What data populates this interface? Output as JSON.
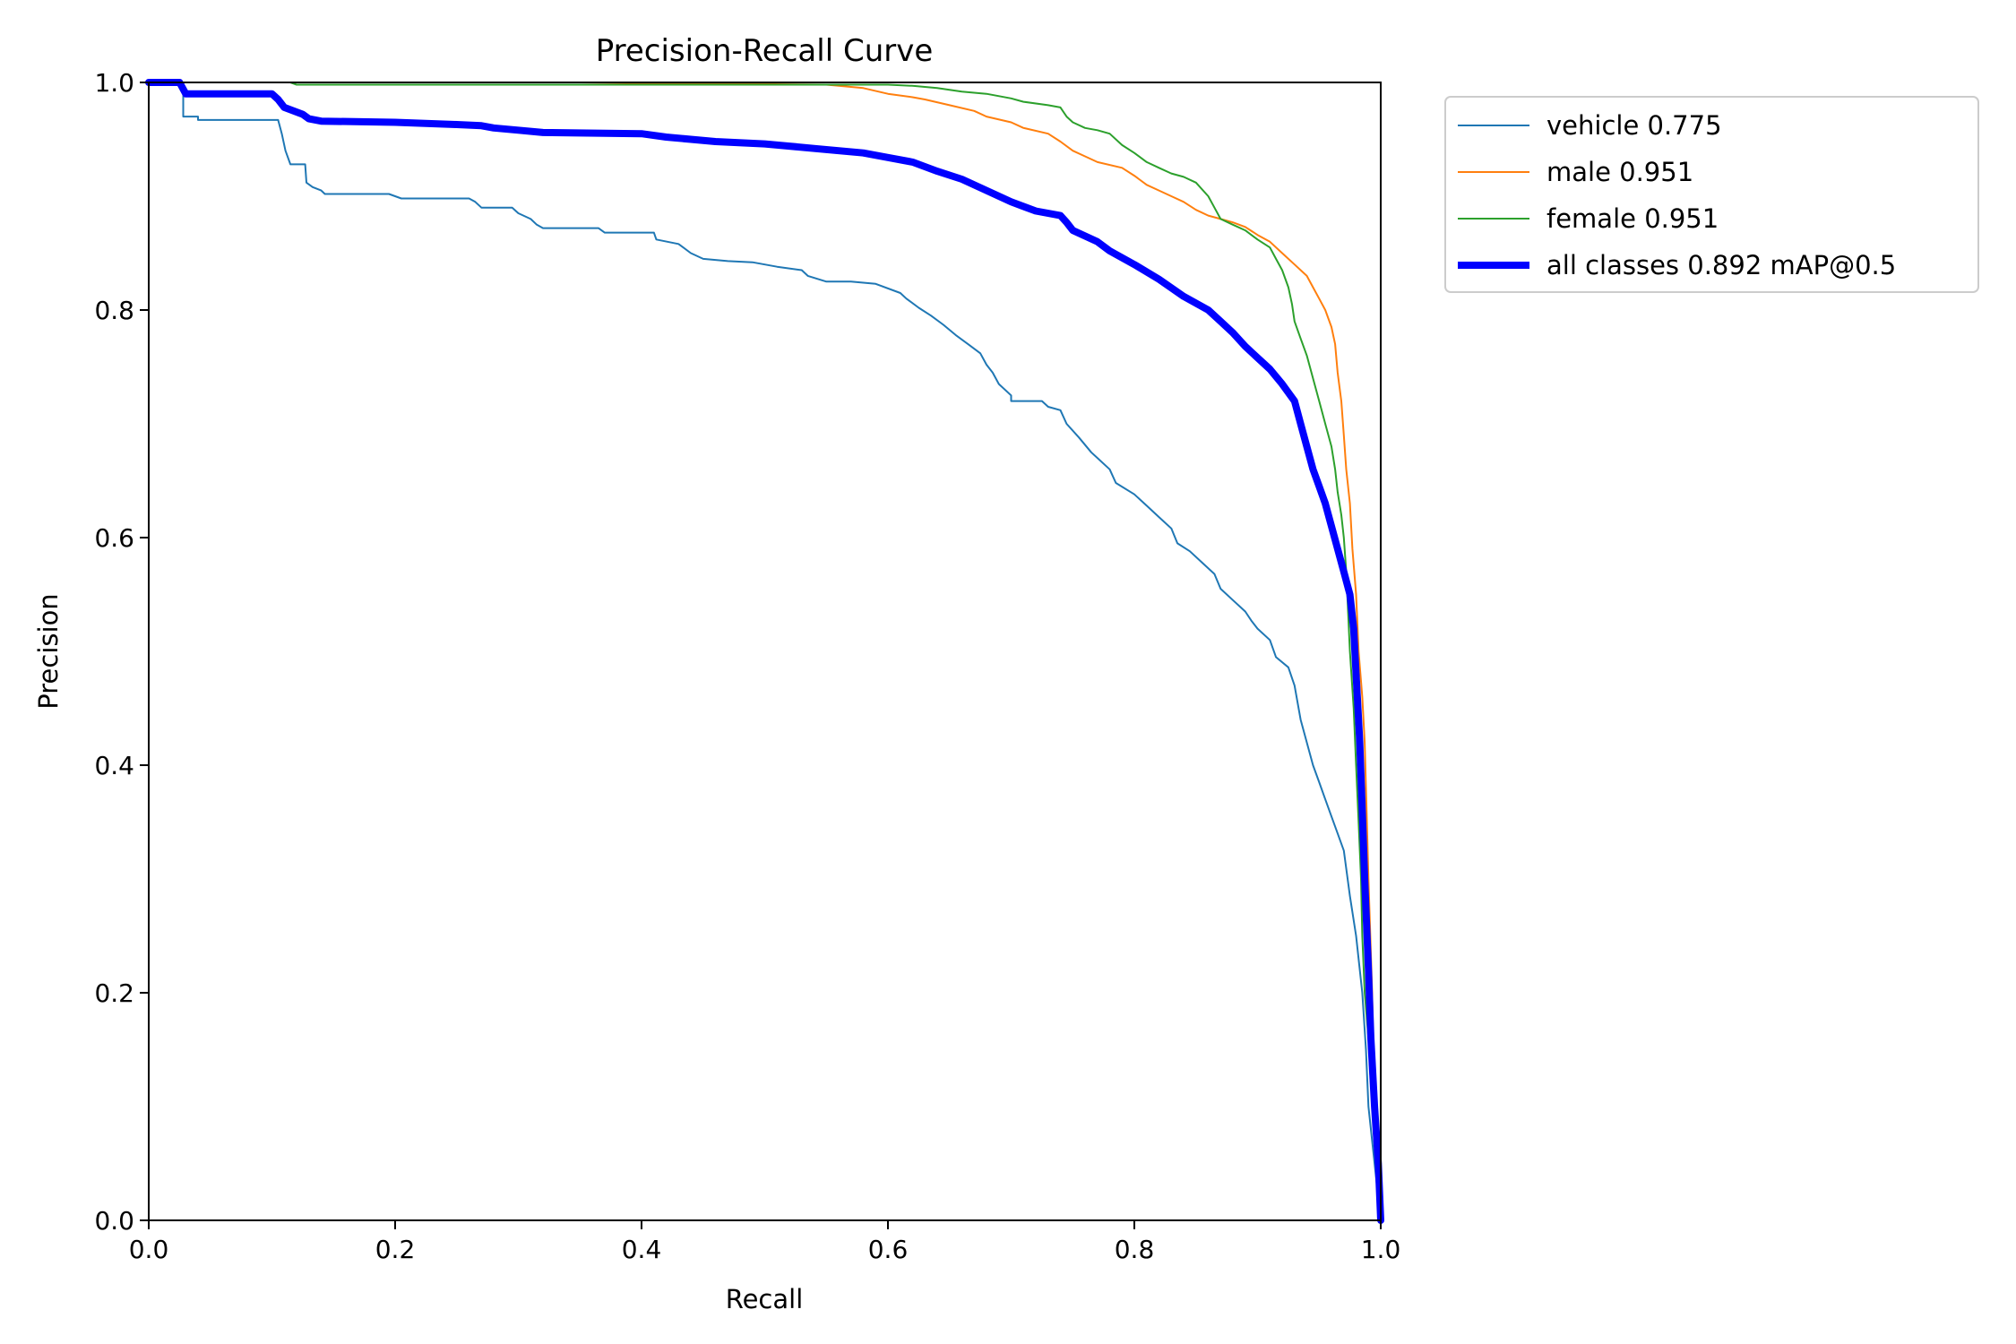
{
  "chart_data": {
    "type": "line",
    "title": "Precision-Recall Curve",
    "xlabel": "Recall",
    "ylabel": "Precision",
    "xlim": [
      0,
      1
    ],
    "ylim": [
      0,
      1
    ],
    "xticks": [
      "0.0",
      "0.2",
      "0.4",
      "0.6",
      "0.8",
      "1.0"
    ],
    "yticks": [
      "0.0",
      "0.2",
      "0.4",
      "0.6",
      "0.8",
      "1.0"
    ],
    "grid": false,
    "legend_position": "outside-top-right",
    "series": [
      {
        "name": "vehicle 0.775",
        "color": "#1f77b4",
        "emphasis": "thin",
        "points": [
          [
            0,
            1.0
          ],
          [
            0.028,
            1.0
          ],
          [
            0.028,
            0.97
          ],
          [
            0.04,
            0.97
          ],
          [
            0.04,
            0.967
          ],
          [
            0.105,
            0.967
          ],
          [
            0.108,
            0.955
          ],
          [
            0.111,
            0.94
          ],
          [
            0.115,
            0.928
          ],
          [
            0.127,
            0.928
          ],
          [
            0.128,
            0.912
          ],
          [
            0.133,
            0.908
          ],
          [
            0.14,
            0.905
          ],
          [
            0.143,
            0.902
          ],
          [
            0.195,
            0.902
          ],
          [
            0.2,
            0.9
          ],
          [
            0.205,
            0.898
          ],
          [
            0.26,
            0.898
          ],
          [
            0.265,
            0.895
          ],
          [
            0.27,
            0.89
          ],
          [
            0.295,
            0.89
          ],
          [
            0.3,
            0.885
          ],
          [
            0.31,
            0.88
          ],
          [
            0.315,
            0.875
          ],
          [
            0.32,
            0.872
          ],
          [
            0.365,
            0.872
          ],
          [
            0.37,
            0.868
          ],
          [
            0.41,
            0.868
          ],
          [
            0.412,
            0.862
          ],
          [
            0.43,
            0.858
          ],
          [
            0.44,
            0.85
          ],
          [
            0.45,
            0.845
          ],
          [
            0.47,
            0.843
          ],
          [
            0.49,
            0.842
          ],
          [
            0.51,
            0.838
          ],
          [
            0.53,
            0.835
          ],
          [
            0.535,
            0.83
          ],
          [
            0.55,
            0.825
          ],
          [
            0.57,
            0.825
          ],
          [
            0.59,
            0.823
          ],
          [
            0.61,
            0.815
          ],
          [
            0.615,
            0.81
          ],
          [
            0.625,
            0.802
          ],
          [
            0.635,
            0.795
          ],
          [
            0.645,
            0.787
          ],
          [
            0.655,
            0.778
          ],
          [
            0.665,
            0.77
          ],
          [
            0.675,
            0.762
          ],
          [
            0.68,
            0.752
          ],
          [
            0.685,
            0.745
          ],
          [
            0.69,
            0.735
          ],
          [
            0.7,
            0.725
          ],
          [
            0.7,
            0.72
          ],
          [
            0.725,
            0.72
          ],
          [
            0.73,
            0.715
          ],
          [
            0.74,
            0.712
          ],
          [
            0.745,
            0.7
          ],
          [
            0.755,
            0.688
          ],
          [
            0.765,
            0.675
          ],
          [
            0.78,
            0.66
          ],
          [
            0.785,
            0.648
          ],
          [
            0.8,
            0.638
          ],
          [
            0.81,
            0.628
          ],
          [
            0.82,
            0.618
          ],
          [
            0.83,
            0.608
          ],
          [
            0.835,
            0.595
          ],
          [
            0.845,
            0.588
          ],
          [
            0.855,
            0.578
          ],
          [
            0.865,
            0.568
          ],
          [
            0.87,
            0.555
          ],
          [
            0.88,
            0.545
          ],
          [
            0.89,
            0.535
          ],
          [
            0.895,
            0.527
          ],
          [
            0.9,
            0.52
          ],
          [
            0.91,
            0.51
          ],
          [
            0.915,
            0.495
          ],
          [
            0.925,
            0.486
          ],
          [
            0.93,
            0.47
          ],
          [
            0.935,
            0.44
          ],
          [
            0.94,
            0.42
          ],
          [
            0.945,
            0.4
          ],
          [
            0.95,
            0.385
          ],
          [
            0.955,
            0.37
          ],
          [
            0.96,
            0.355
          ],
          [
            0.965,
            0.34
          ],
          [
            0.97,
            0.325
          ],
          [
            0.975,
            0.285
          ],
          [
            0.98,
            0.25
          ],
          [
            0.985,
            0.2
          ],
          [
            0.988,
            0.15
          ],
          [
            0.99,
            0.1
          ],
          [
            0.995,
            0.05
          ],
          [
            1.0,
            0.0
          ]
        ]
      },
      {
        "name": "male 0.951",
        "color": "#ff7f0e",
        "emphasis": "thin",
        "points": [
          [
            0,
            1.0
          ],
          [
            0.12,
            1.0
          ],
          [
            0.35,
            1.0
          ],
          [
            0.45,
            0.999
          ],
          [
            0.55,
            0.998
          ],
          [
            0.58,
            0.995
          ],
          [
            0.6,
            0.99
          ],
          [
            0.62,
            0.987
          ],
          [
            0.63,
            0.985
          ],
          [
            0.65,
            0.98
          ],
          [
            0.67,
            0.975
          ],
          [
            0.68,
            0.97
          ],
          [
            0.7,
            0.965
          ],
          [
            0.71,
            0.96
          ],
          [
            0.73,
            0.955
          ],
          [
            0.74,
            0.948
          ],
          [
            0.75,
            0.94
          ],
          [
            0.76,
            0.935
          ],
          [
            0.77,
            0.93
          ],
          [
            0.79,
            0.925
          ],
          [
            0.8,
            0.918
          ],
          [
            0.81,
            0.91
          ],
          [
            0.82,
            0.905
          ],
          [
            0.83,
            0.9
          ],
          [
            0.84,
            0.895
          ],
          [
            0.85,
            0.888
          ],
          [
            0.86,
            0.883
          ],
          [
            0.87,
            0.88
          ],
          [
            0.88,
            0.877
          ],
          [
            0.89,
            0.873
          ],
          [
            0.9,
            0.866
          ],
          [
            0.91,
            0.86
          ],
          [
            0.92,
            0.85
          ],
          [
            0.93,
            0.84
          ],
          [
            0.94,
            0.83
          ],
          [
            0.945,
            0.82
          ],
          [
            0.95,
            0.81
          ],
          [
            0.955,
            0.8
          ],
          [
            0.96,
            0.785
          ],
          [
            0.963,
            0.77
          ],
          [
            0.965,
            0.745
          ],
          [
            0.968,
            0.72
          ],
          [
            0.97,
            0.69
          ],
          [
            0.972,
            0.66
          ],
          [
            0.975,
            0.63
          ],
          [
            0.977,
            0.59
          ],
          [
            0.98,
            0.55
          ],
          [
            0.982,
            0.5
          ],
          [
            0.985,
            0.46
          ],
          [
            0.987,
            0.42
          ],
          [
            0.99,
            0.3
          ],
          [
            0.993,
            0.2
          ],
          [
            0.995,
            0.1
          ],
          [
            1.0,
            0.0
          ]
        ]
      },
      {
        "name": "female 0.951",
        "color": "#2ca02c",
        "emphasis": "thin",
        "points": [
          [
            0,
            1.0
          ],
          [
            0.115,
            1.0
          ],
          [
            0.12,
            0.998
          ],
          [
            0.6,
            0.998
          ],
          [
            0.62,
            0.997
          ],
          [
            0.64,
            0.995
          ],
          [
            0.66,
            0.992
          ],
          [
            0.68,
            0.99
          ],
          [
            0.7,
            0.986
          ],
          [
            0.71,
            0.983
          ],
          [
            0.73,
            0.98
          ],
          [
            0.74,
            0.978
          ],
          [
            0.745,
            0.97
          ],
          [
            0.75,
            0.965
          ],
          [
            0.76,
            0.96
          ],
          [
            0.77,
            0.958
          ],
          [
            0.78,
            0.955
          ],
          [
            0.79,
            0.945
          ],
          [
            0.8,
            0.938
          ],
          [
            0.81,
            0.93
          ],
          [
            0.82,
            0.925
          ],
          [
            0.83,
            0.92
          ],
          [
            0.84,
            0.917
          ],
          [
            0.85,
            0.912
          ],
          [
            0.86,
            0.9
          ],
          [
            0.865,
            0.89
          ],
          [
            0.87,
            0.88
          ],
          [
            0.88,
            0.875
          ],
          [
            0.89,
            0.87
          ],
          [
            0.9,
            0.862
          ],
          [
            0.91,
            0.855
          ],
          [
            0.915,
            0.845
          ],
          [
            0.92,
            0.835
          ],
          [
            0.925,
            0.82
          ],
          [
            0.928,
            0.805
          ],
          [
            0.93,
            0.79
          ],
          [
            0.935,
            0.775
          ],
          [
            0.94,
            0.76
          ],
          [
            0.945,
            0.74
          ],
          [
            0.95,
            0.72
          ],
          [
            0.955,
            0.7
          ],
          [
            0.96,
            0.68
          ],
          [
            0.963,
            0.66
          ],
          [
            0.965,
            0.64
          ],
          [
            0.968,
            0.62
          ],
          [
            0.97,
            0.6
          ],
          [
            0.972,
            0.57
          ],
          [
            0.975,
            0.5
          ],
          [
            0.978,
            0.45
          ],
          [
            0.98,
            0.4
          ],
          [
            0.982,
            0.35
          ],
          [
            0.984,
            0.3
          ],
          [
            0.985,
            0.25
          ],
          [
            0.987,
            0.2
          ],
          [
            0.99,
            0.16
          ],
          [
            0.992,
            0.12
          ],
          [
            0.995,
            0.08
          ],
          [
            1.0,
            0.0
          ]
        ]
      },
      {
        "name": "all classes 0.892 mAP@0.5",
        "color": "#0000ff",
        "emphasis": "thick",
        "points": [
          [
            0,
            1.0
          ],
          [
            0.025,
            1.0
          ],
          [
            0.03,
            0.99
          ],
          [
            0.1,
            0.99
          ],
          [
            0.105,
            0.985
          ],
          [
            0.11,
            0.978
          ],
          [
            0.125,
            0.972
          ],
          [
            0.13,
            0.968
          ],
          [
            0.14,
            0.966
          ],
          [
            0.2,
            0.965
          ],
          [
            0.25,
            0.963
          ],
          [
            0.27,
            0.962
          ],
          [
            0.28,
            0.96
          ],
          [
            0.3,
            0.958
          ],
          [
            0.32,
            0.956
          ],
          [
            0.4,
            0.955
          ],
          [
            0.42,
            0.952
          ],
          [
            0.44,
            0.95
          ],
          [
            0.46,
            0.948
          ],
          [
            0.5,
            0.946
          ],
          [
            0.52,
            0.944
          ],
          [
            0.54,
            0.942
          ],
          [
            0.56,
            0.94
          ],
          [
            0.58,
            0.938
          ],
          [
            0.6,
            0.934
          ],
          [
            0.62,
            0.93
          ],
          [
            0.64,
            0.922
          ],
          [
            0.66,
            0.915
          ],
          [
            0.68,
            0.905
          ],
          [
            0.7,
            0.895
          ],
          [
            0.72,
            0.887
          ],
          [
            0.74,
            0.883
          ],
          [
            0.745,
            0.877
          ],
          [
            0.75,
            0.87
          ],
          [
            0.77,
            0.86
          ],
          [
            0.78,
            0.852
          ],
          [
            0.8,
            0.84
          ],
          [
            0.82,
            0.827
          ],
          [
            0.84,
            0.812
          ],
          [
            0.86,
            0.8
          ],
          [
            0.87,
            0.79
          ],
          [
            0.88,
            0.78
          ],
          [
            0.89,
            0.768
          ],
          [
            0.9,
            0.758
          ],
          [
            0.91,
            0.748
          ],
          [
            0.92,
            0.735
          ],
          [
            0.93,
            0.72
          ],
          [
            0.935,
            0.7
          ],
          [
            0.94,
            0.68
          ],
          [
            0.945,
            0.66
          ],
          [
            0.95,
            0.645
          ],
          [
            0.955,
            0.63
          ],
          [
            0.96,
            0.61
          ],
          [
            0.965,
            0.59
          ],
          [
            0.97,
            0.57
          ],
          [
            0.975,
            0.55
          ],
          [
            0.978,
            0.52
          ],
          [
            0.98,
            0.48
          ],
          [
            0.983,
            0.42
          ],
          [
            0.985,
            0.36
          ],
          [
            0.987,
            0.3
          ],
          [
            0.99,
            0.22
          ],
          [
            0.992,
            0.16
          ],
          [
            0.995,
            0.1
          ],
          [
            0.998,
            0.05
          ],
          [
            1.0,
            0.0
          ]
        ]
      }
    ]
  }
}
